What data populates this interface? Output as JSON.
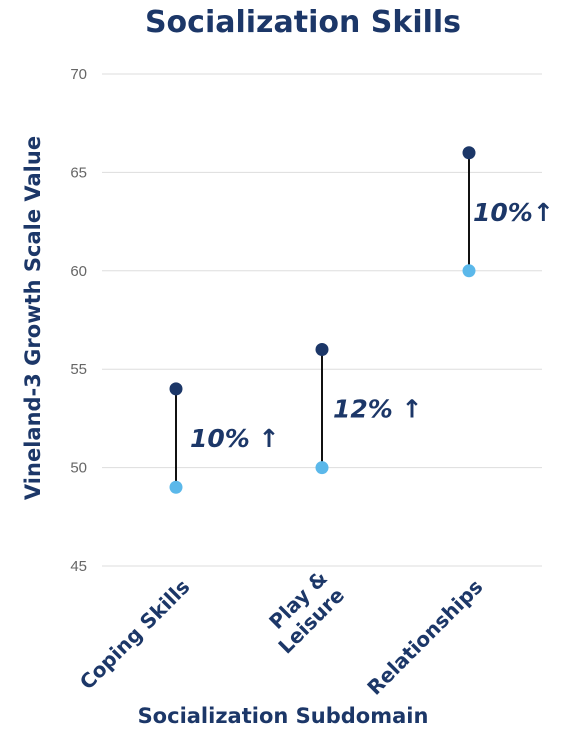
{
  "chart_data": {
    "type": "dumbbell",
    "title": "Socialization Skills",
    "xlabel": "Socialization Subdomain",
    "ylabel": "Vineland-3 Growth Scale Value",
    "ylim": [
      45,
      70
    ],
    "yticks": [
      45,
      50,
      55,
      60,
      65,
      70
    ],
    "grid": true,
    "categories": [
      [
        "Coping Skills"
      ],
      [
        "Play &",
        "Leisure"
      ],
      [
        "Relationships"
      ]
    ],
    "series": [
      {
        "values": [
          49,
          50,
          60
        ],
        "color": "#5bb8ea"
      },
      {
        "values": [
          54,
          56,
          66
        ],
        "color": "#1c3768"
      }
    ],
    "annotations": [
      "10% ↑",
      "12% ↑",
      "10%↑"
    ]
  }
}
